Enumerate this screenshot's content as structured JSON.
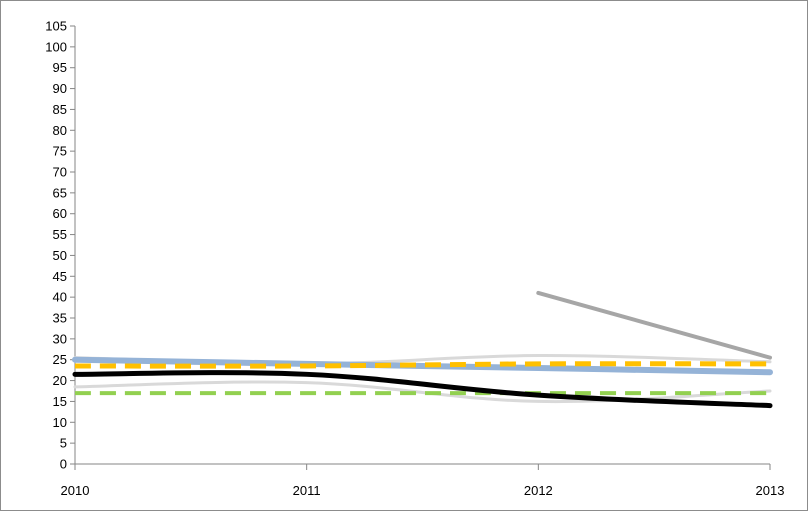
{
  "chart_data": {
    "type": "line",
    "title": "",
    "xlabel": "",
    "ylabel": "",
    "x": [
      "2010",
      "2011",
      "2012",
      "2013"
    ],
    "ylim": [
      0,
      105
    ],
    "yticks": [
      0,
      5,
      10,
      15,
      20,
      25,
      30,
      35,
      40,
      45,
      50,
      55,
      60,
      65,
      70,
      75,
      80,
      85,
      90,
      95,
      100,
      105
    ],
    "grid": false,
    "legend": "none",
    "series": [
      {
        "values": [
          18.5,
          19.5,
          15.0,
          17.5
        ],
        "color": "#d9d9d9",
        "style": "solid",
        "width": 3,
        "smooth": true
      },
      {
        "values": [
          25.5,
          24.0,
          26.0,
          24.5
        ],
        "color": "#d9d9d9",
        "style": "solid",
        "width": 3,
        "smooth": true
      },
      {
        "values": [
          null,
          null,
          41.0,
          25.5
        ],
        "color": "#a6a6a6",
        "style": "solid",
        "width": 4,
        "smooth": false
      },
      {
        "values": [
          25.0,
          24.0,
          23.0,
          22.0
        ],
        "color": "#95b3d7",
        "style": "solid",
        "width": 6,
        "smooth": true
      },
      {
        "values": [
          17.0,
          17.0,
          17.0,
          17.0
        ],
        "color": "#92d050",
        "style": "dashed",
        "width": 4,
        "smooth": true
      },
      {
        "values": [
          23.5,
          23.5,
          24.0,
          24.0
        ],
        "color": "#ffc000",
        "style": "dashed",
        "width": 5,
        "smooth": true
      },
      {
        "values": [
          21.5,
          21.5,
          16.5,
          14.0
        ],
        "color": "#000000",
        "style": "solid",
        "width": 5,
        "smooth": true
      }
    ]
  }
}
